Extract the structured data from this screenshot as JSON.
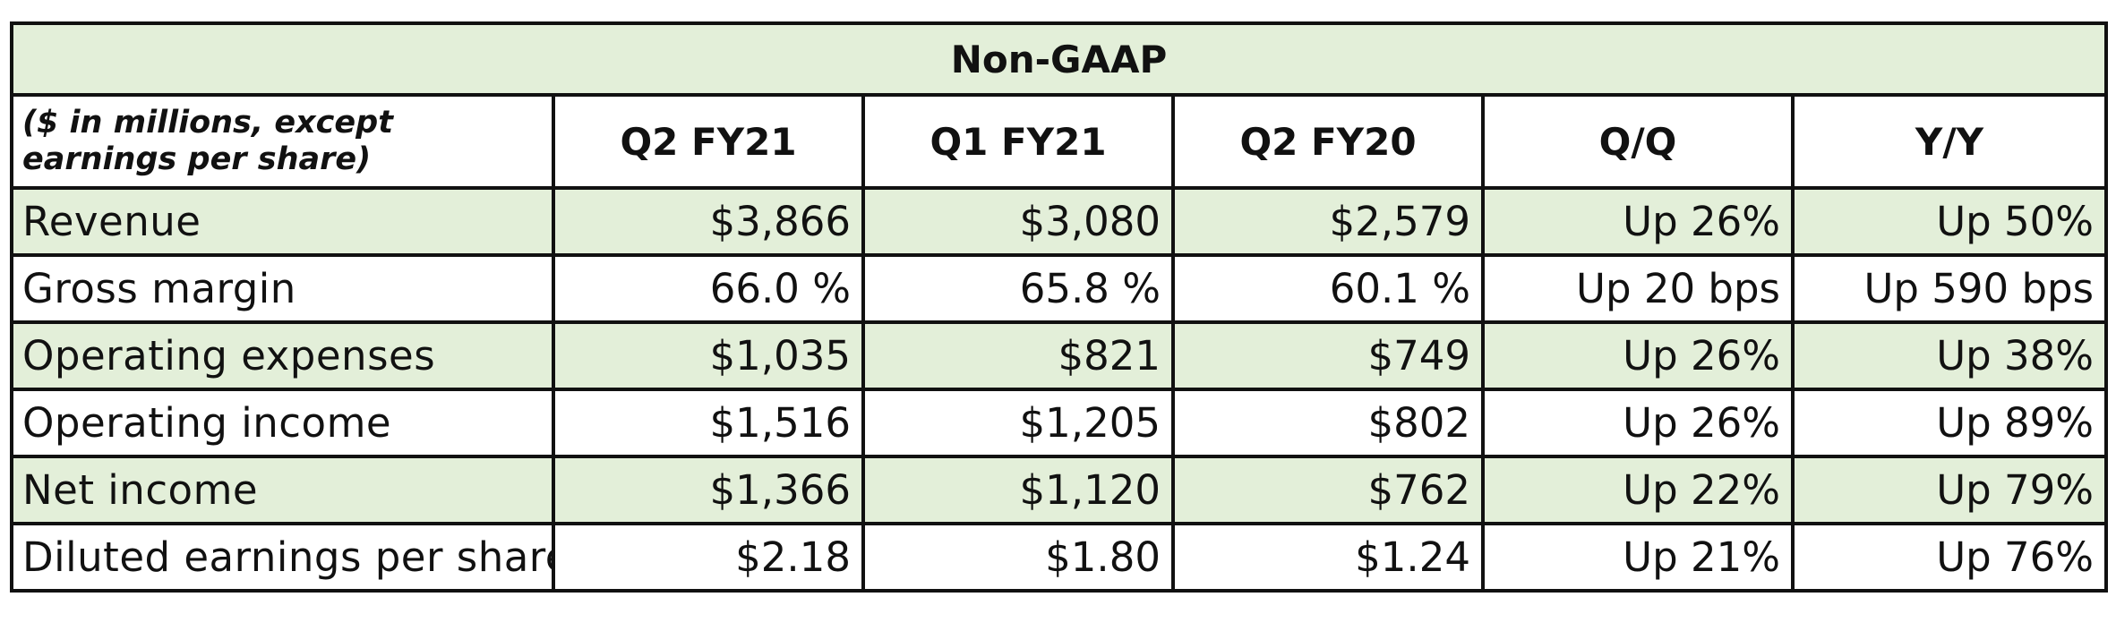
{
  "title": "Non-GAAP",
  "units_note": "($ in millions, except earnings per share)",
  "columns": [
    "Q2 FY21",
    "Q1 FY21",
    "Q2 FY20",
    "Q/Q",
    "Y/Y"
  ],
  "rows": [
    {
      "label": "Revenue",
      "values": [
        "$3,866",
        "$3,080",
        "$2,579",
        "Up 26%",
        "Up 50%"
      ]
    },
    {
      "label": "Gross margin",
      "values": [
        "66.0 %",
        "65.8 %",
        "60.1 %",
        "Up 20 bps",
        "Up 590 bps"
      ]
    },
    {
      "label": "Operating expenses",
      "values": [
        "$1,035",
        "$821",
        "$749",
        "Up 26%",
        "Up 38%"
      ]
    },
    {
      "label": "Operating income",
      "values": [
        "$1,516",
        "$1,205",
        "$802",
        "Up 26%",
        "Up 89%"
      ]
    },
    {
      "label": "Net income",
      "values": [
        "$1,366",
        "$1,120",
        "$762",
        "Up 22%",
        "Up 79%"
      ]
    },
    {
      "label": "Diluted earnings per share",
      "values": [
        "$2.18",
        "$1.80",
        "$1.24",
        "Up 21%",
        "Up 76%"
      ]
    }
  ],
  "colors": {
    "shade": "#e3efd9",
    "border": "#111111",
    "text": "#111111"
  }
}
